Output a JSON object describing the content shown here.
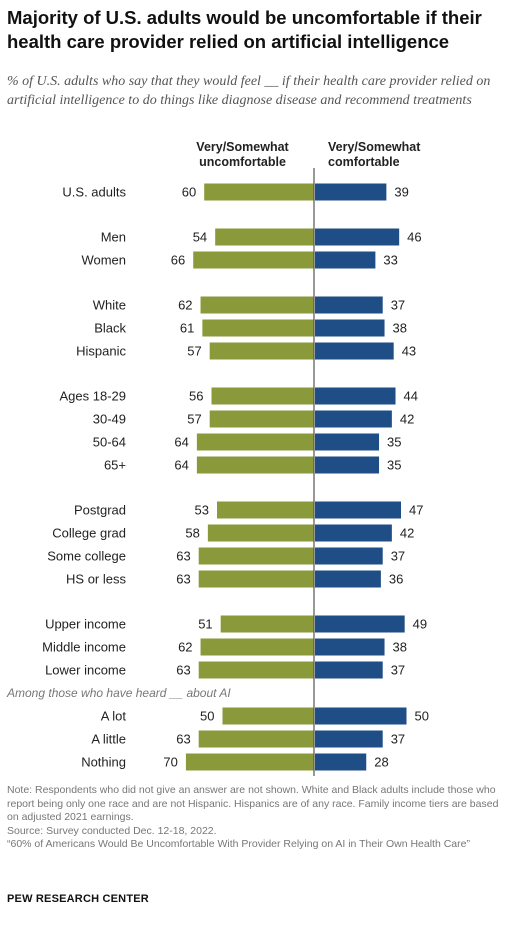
{
  "header": {
    "title": "Majority of U.S. adults would be uncomfortable if their health care provider relied on artificial intelligence",
    "subtitle": "% of U.S. adults who say that they would feel __ if their health care provider relied on artificial intelligence to do things like diagnose disease and recommend treatments"
  },
  "chart_data": {
    "type": "bar",
    "orientation": "diverging-horizontal",
    "series": [
      {
        "name": "Very/Somewhat uncomfortable",
        "color": "#8a9a3b",
        "side": "left"
      },
      {
        "name": "Very/Somewhat comfortable",
        "color": "#1f4e87",
        "side": "right"
      }
    ],
    "rows": [
      {
        "label": "U.S. adults",
        "uncomfortable": 60,
        "comfortable": 39
      },
      {
        "label": "Men",
        "uncomfortable": 54,
        "comfortable": 46
      },
      {
        "label": "Women",
        "uncomfortable": 66,
        "comfortable": 33
      },
      {
        "label": "White",
        "uncomfortable": 62,
        "comfortable": 37
      },
      {
        "label": "Black",
        "uncomfortable": 61,
        "comfortable": 38
      },
      {
        "label": "Hispanic",
        "uncomfortable": 57,
        "comfortable": 43
      },
      {
        "label": "Ages 18-29",
        "uncomfortable": 56,
        "comfortable": 44
      },
      {
        "label": "30-49",
        "uncomfortable": 57,
        "comfortable": 42
      },
      {
        "label": "50-64",
        "uncomfortable": 64,
        "comfortable": 35
      },
      {
        "label": "65+",
        "uncomfortable": 64,
        "comfortable": 35
      },
      {
        "label": "Postgrad",
        "uncomfortable": 53,
        "comfortable": 47
      },
      {
        "label": "College grad",
        "uncomfortable": 58,
        "comfortable": 42
      },
      {
        "label": "Some college",
        "uncomfortable": 63,
        "comfortable": 37
      },
      {
        "label": "HS or less",
        "uncomfortable": 63,
        "comfortable": 36
      },
      {
        "label": "Upper income",
        "uncomfortable": 51,
        "comfortable": 49
      },
      {
        "label": "Middle income",
        "uncomfortable": 62,
        "comfortable": 38
      },
      {
        "label": "Lower income",
        "uncomfortable": 63,
        "comfortable": 37
      },
      {
        "label": "A lot",
        "uncomfortable": 50,
        "comfortable": 50
      },
      {
        "label": "A little",
        "uncomfortable": 63,
        "comfortable": 37
      },
      {
        "label": "Nothing",
        "uncomfortable": 70,
        "comfortable": 28
      }
    ],
    "annotations": [
      "Among those who have heard __ about AI"
    ]
  },
  "footer": {
    "note": "Note: Respondents who did not give an answer are not shown. White and Black adults include those who report being only one race and are not Hispanic. Hispanics are of any race. Family income tiers are based on adjusted 2021 earnings.",
    "source": "Source: Survey conducted Dec. 12-18, 2022.",
    "report": "“60% of Americans Would Be Uncomfortable With Provider Relying on AI in Their Own Health Care”",
    "org": "PEW RESEARCH CENTER"
  }
}
